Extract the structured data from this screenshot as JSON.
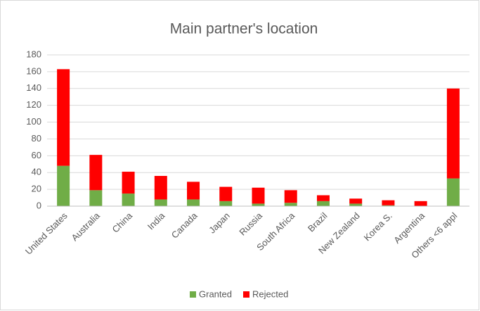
{
  "chart_data": {
    "type": "stacked_bar",
    "title": "Main partner's location",
    "categories": [
      "United States",
      "Australia",
      "China",
      "India",
      "Canada",
      "Japan",
      "Russia",
      "South Africa",
      "Brazil",
      "New Zealand",
      "Korea S.",
      "Argentina",
      "Others <6 appl"
    ],
    "series": [
      {
        "name": "Granted",
        "color": "#70ad47",
        "values": [
          48,
          19,
          15,
          8,
          8,
          6,
          3,
          4,
          6,
          3,
          1,
          0,
          33
        ]
      },
      {
        "name": "Rejected",
        "color": "#ff0000",
        "values": [
          115,
          42,
          26,
          28,
          21,
          17,
          19,
          15,
          7,
          6,
          6,
          6,
          107
        ]
      }
    ],
    "ylim": [
      0,
      180
    ],
    "yticks": [
      0,
      20,
      40,
      60,
      80,
      100,
      120,
      140,
      160,
      180
    ],
    "grid": true,
    "legend": "bottom"
  }
}
